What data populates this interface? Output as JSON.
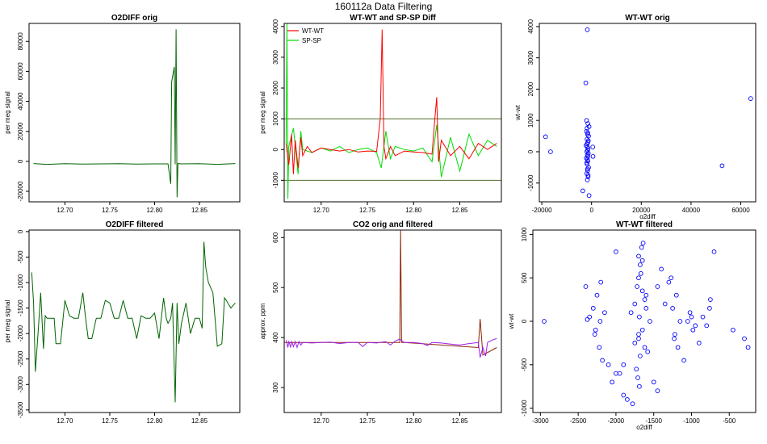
{
  "figure": {
    "title": "160112a   Data Filtering"
  },
  "colors": {
    "green": "#006400",
    "light_green": "#00dd00",
    "red": "#ff0000",
    "brown": "#8b2500",
    "purple": "#a020f0",
    "blue": "#0000ff",
    "olive": "#556b2f"
  },
  "chart_data": [
    {
      "id": "o2diff_orig",
      "type": "line",
      "title": "O2DIFF orig",
      "xlabel": "",
      "ylabel": "per meg signal",
      "xlim": [
        12.66,
        12.895
      ],
      "ylim": [
        -27000,
        92000
      ],
      "xticks": [
        12.7,
        12.75,
        12.8,
        12.85
      ],
      "xticklabels": [
        "12.70",
        "12.75",
        "12.80",
        "12.85"
      ],
      "yticks": [
        -20000,
        0,
        20000,
        40000,
        60000,
        80000
      ],
      "yticklabels": [
        "-20000",
        "0",
        "20000",
        "40000",
        "60000",
        "80000"
      ],
      "series": [
        {
          "name": "O2DIFF",
          "color": "#006400",
          "x": [
            12.665,
            12.68,
            12.7,
            12.72,
            12.74,
            12.76,
            12.78,
            12.8,
            12.815,
            12.818,
            12.819,
            12.822,
            12.823,
            12.824,
            12.825,
            12.826,
            12.83,
            12.85,
            12.87,
            12.89
          ],
          "y": [
            -1500,
            -2000,
            -1600,
            -1800,
            -1700,
            -1600,
            -1800,
            -1700,
            -1700,
            -15000,
            53000,
            63000,
            -2000,
            88000,
            -24000,
            -1500,
            -1700,
            -1600,
            -2000,
            -1500
          ]
        }
      ]
    },
    {
      "id": "wtwt_spsp_diff",
      "type": "line",
      "title": "WT-WT and SP-SP Diff",
      "xlabel": "",
      "ylabel": "per meg signal",
      "xlim": [
        12.66,
        12.895
      ],
      "ylim": [
        -1700,
        4100
      ],
      "xticks": [
        12.7,
        12.75,
        12.8,
        12.85
      ],
      "xticklabels": [
        "12.70",
        "12.75",
        "12.80",
        "12.85"
      ],
      "yticks": [
        -1000,
        0,
        1000,
        2000,
        3000,
        4000
      ],
      "yticklabels": [
        "-1000",
        "0",
        "1000",
        "2000",
        "3000",
        "4000"
      ],
      "hlines": [
        1000,
        -1000
      ],
      "legend": {
        "position": "top-left",
        "entries": [
          "WT-WT",
          "SP-SP"
        ]
      },
      "series": [
        {
          "name": "SP-SP",
          "color": "#00dd00",
          "x": [
            12.662,
            12.663,
            12.664,
            12.665,
            12.67,
            12.675,
            12.678,
            12.68,
            12.69,
            12.7,
            12.71,
            12.72,
            12.73,
            12.74,
            12.75,
            12.76,
            12.765,
            12.77,
            12.775,
            12.78,
            12.79,
            12.8,
            12.81,
            12.82,
            12.825,
            12.83,
            12.84,
            12.85,
            12.86,
            12.87,
            12.88,
            12.89
          ],
          "y": [
            200,
            4100,
            -1600,
            100,
            700,
            -800,
            600,
            0,
            -100,
            50,
            -50,
            100,
            -100,
            0,
            50,
            -100,
            -600,
            600,
            -300,
            100,
            0,
            -50,
            50,
            -400,
            800,
            -900,
            400,
            -700,
            500,
            -200,
            300,
            100
          ]
        },
        {
          "name": "WT-WT",
          "color": "#ff0000",
          "x": [
            12.662,
            12.665,
            12.668,
            12.67,
            12.672,
            12.675,
            12.678,
            12.68,
            12.685,
            12.69,
            12.7,
            12.71,
            12.72,
            12.73,
            12.74,
            12.75,
            12.76,
            12.764,
            12.766,
            12.768,
            12.77,
            12.775,
            12.78,
            12.79,
            12.8,
            12.81,
            12.82,
            12.823,
            12.825,
            12.827,
            12.83,
            12.84,
            12.85,
            12.86,
            12.87,
            12.88,
            12.89
          ],
          "y": [
            200,
            -500,
            500,
            -800,
            300,
            -600,
            400,
            -200,
            100,
            -100,
            50,
            0,
            -50,
            0,
            -80,
            -50,
            -60,
            1000,
            3900,
            100,
            -300,
            100,
            -200,
            -50,
            -80,
            -100,
            -150,
            1000,
            1700,
            -400,
            300,
            -200,
            100,
            -300,
            200,
            0,
            200
          ]
        }
      ]
    },
    {
      "id": "wtwt_orig",
      "type": "scatter",
      "title": "WT-WT orig",
      "xlabel": "o2diff",
      "ylabel": "wt-wt",
      "xlim": [
        -21000,
        66000
      ],
      "ylim": [
        -1600,
        4100
      ],
      "xticks": [
        -20000,
        0,
        20000,
        40000,
        60000
      ],
      "xticklabels": [
        "-20000",
        "0",
        "20000",
        "40000",
        "60000"
      ],
      "yticks": [
        -1000,
        0,
        1000,
        2000,
        3000,
        4000
      ],
      "yticklabels": [
        "-1000",
        "0",
        "1000",
        "2000",
        "3000",
        "4000"
      ],
      "series": [
        {
          "name": "points",
          "color": "#0000ff",
          "x": [
            -1700,
            -2300,
            64000,
            52500,
            -18500,
            -16500,
            -3500,
            -1000,
            -2000,
            -1000,
            -2000,
            -1200,
            -1800,
            -1500,
            -2200,
            -1400,
            -1600,
            -1900,
            -1300,
            -1700,
            -2100,
            -1500,
            -1800,
            -1200,
            -1600,
            -1900,
            -1400,
            -1700,
            -1500,
            -1800,
            -1600,
            -1300,
            -1700,
            -1500,
            -1900,
            -1600,
            -1400,
            -1800,
            -1700,
            -1500,
            500,
            600
          ],
          "y": [
            3900,
            2200,
            1700,
            -450,
            480,
            0,
            -1250,
            -1400,
            1000,
            800,
            650,
            500,
            400,
            300,
            200,
            100,
            50,
            0,
            -50,
            -100,
            -200,
            -300,
            -400,
            -500,
            -600,
            -700,
            -800,
            -900,
            900,
            750,
            550,
            350,
            150,
            -150,
            -350,
            -550,
            -750,
            250,
            -250,
            600,
            150,
            -150
          ]
        }
      ]
    },
    {
      "id": "o2diff_filtered",
      "type": "line",
      "title": "O2DIFF filtered",
      "xlabel": "",
      "ylabel": "per meg signal",
      "xlim": [
        12.66,
        12.895
      ],
      "ylim": [
        -3550,
        30
      ],
      "xticks": [
        12.7,
        12.75,
        12.8,
        12.85
      ],
      "xticklabels": [
        "12.70",
        "12.75",
        "12.80",
        "12.85"
      ],
      "yticks": [
        -3500,
        -3000,
        -2500,
        -2000,
        -1500,
        -1000,
        -500,
        0
      ],
      "yticklabels": [
        "-3500",
        "-3000",
        "-2500",
        "-2000",
        "-1500",
        "-1000",
        "-500",
        "0"
      ],
      "series": [
        {
          "name": "O2DIFF filtered",
          "color": "#006400",
          "x": [
            12.663,
            12.665,
            12.667,
            12.67,
            12.673,
            12.676,
            12.678,
            12.68,
            12.685,
            12.688,
            12.69,
            12.695,
            12.7,
            12.705,
            12.71,
            12.715,
            12.72,
            12.723,
            12.726,
            12.73,
            12.735,
            12.74,
            12.745,
            12.75,
            12.755,
            12.76,
            12.765,
            12.77,
            12.775,
            12.78,
            12.785,
            12.79,
            12.795,
            12.8,
            12.805,
            12.81,
            12.813,
            12.815,
            12.818,
            12.82,
            12.823,
            12.825,
            12.827,
            12.83,
            12.835,
            12.84,
            12.845,
            12.85,
            12.853,
            12.855,
            12.857,
            12.86,
            12.865,
            12.87,
            12.875,
            12.878,
            12.88,
            12.885,
            12.89
          ],
          "y": [
            -800,
            -1400,
            -2750,
            -2000,
            -1200,
            -2300,
            -1650,
            -1700,
            -1700,
            -1700,
            -2200,
            -2200,
            -1350,
            -1650,
            -1700,
            -1700,
            -1200,
            -1700,
            -2100,
            -2100,
            -1700,
            -1700,
            -1350,
            -1400,
            -1700,
            -1700,
            -1350,
            -1700,
            -1700,
            -2100,
            -1650,
            -1700,
            -1700,
            -1600,
            -2100,
            -1300,
            -1700,
            -1800,
            -1700,
            -1400,
            -3350,
            -1400,
            -2200,
            -1800,
            -1400,
            -2000,
            -1700,
            -1700,
            -1900,
            -200,
            -700,
            -1000,
            -1200,
            -2250,
            -2200,
            -1300,
            -1350,
            -1500,
            -1400
          ]
        }
      ]
    },
    {
      "id": "co2_orig_filtered",
      "type": "line",
      "title": "CO2 orig and filtered",
      "xlabel": "",
      "ylabel": "approx. ppm",
      "xlim": [
        12.66,
        12.895
      ],
      "ylim": [
        250,
        615
      ],
      "xticks": [
        12.7,
        12.75,
        12.8,
        12.85
      ],
      "xticklabels": [
        "12.70",
        "12.75",
        "12.80",
        "12.85"
      ],
      "yticks": [
        300,
        400,
        500,
        600
      ],
      "yticklabels": [
        "300",
        "400",
        "500",
        "600"
      ],
      "series": [
        {
          "name": "CO2 orig",
          "color": "#8b2500",
          "x": [
            12.66,
            12.785,
            12.786,
            12.787,
            12.79,
            12.87,
            12.872,
            12.875,
            12.89
          ],
          "y": [
            390,
            390,
            615,
            390,
            390,
            380,
            437,
            365,
            380
          ]
        },
        {
          "name": "CO2 filtered",
          "color": "#a020f0",
          "x": [
            12.662,
            12.664,
            12.665,
            12.667,
            12.668,
            12.67,
            12.672,
            12.674,
            12.676,
            12.678,
            12.68,
            12.69,
            12.7,
            12.71,
            12.72,
            12.73,
            12.74,
            12.745,
            12.75,
            12.76,
            12.77,
            12.775,
            12.78,
            12.785,
            12.79,
            12.8,
            12.81,
            12.815,
            12.82,
            12.83,
            12.84,
            12.85,
            12.86,
            12.87,
            12.872,
            12.875,
            12.878,
            12.88,
            12.885,
            12.89
          ],
          "y": [
            395,
            380,
            393,
            380,
            393,
            382,
            392,
            380,
            392,
            385,
            390,
            389,
            390,
            391,
            388,
            390,
            390,
            382,
            390,
            389,
            392,
            385,
            393,
            397,
            390,
            390,
            388,
            384,
            390,
            389,
            387,
            385,
            388,
            390,
            360,
            380,
            363,
            390,
            395,
            398
          ]
        }
      ]
    },
    {
      "id": "wtwt_filtered",
      "type": "scatter",
      "title": "WT-WT filtered",
      "xlabel": "o2diff",
      "ylabel": "wt-wt",
      "xlim": [
        -3100,
        -150
      ],
      "ylim": [
        -1050,
        1050
      ],
      "xticks": [
        -3000,
        -2500,
        -2000,
        -1500,
        -1000,
        -500
      ],
      "xticklabels": [
        "-3000",
        "-2500",
        "-2000",
        "-1500",
        "-1000",
        "-500"
      ],
      "yticks": [
        -1000,
        -500,
        0,
        500,
        1000
      ],
      "yticklabels": [
        "-1000",
        "-500",
        "0",
        "500",
        "1000"
      ],
      "series": [
        {
          "name": "points",
          "color": "#0000ff",
          "x": [
            -2950,
            -2380,
            -2300,
            -2280,
            -2250,
            -2220,
            -2200,
            -2180,
            -2350,
            -2150,
            -2270,
            -2210,
            -1680,
            -1650,
            -1700,
            -1720,
            -1600,
            -1750,
            -1800,
            -1550,
            -1650,
            -1700,
            -1620,
            -1680,
            -1900,
            -1950,
            -1500,
            -1450,
            -1850,
            -1780,
            -1660,
            -1640,
            -1700,
            -1690,
            -1710,
            -1670,
            -1730,
            -1650,
            -1580,
            -1620,
            -1750,
            -1600,
            -1700,
            -1690,
            -1200,
            -1250,
            -1150,
            -1220,
            -1180,
            -1300,
            -1100,
            -1270,
            -1230,
            -1000,
            -1050,
            -950,
            -1020,
            -980,
            -2000,
            -2100,
            -1400,
            -850,
            -800,
            -750,
            -900,
            -700,
            -760,
            -2050,
            -450,
            -300,
            -250,
            -1900,
            -1450,
            -1350,
            -2400,
            -2000
          ],
          "y": [
            0,
            20,
            150,
            -150,
            300,
            -300,
            450,
            -450,
            50,
            100,
            -100,
            0,
            650,
            700,
            500,
            400,
            300,
            200,
            100,
            0,
            -100,
            -200,
            -300,
            -400,
            -500,
            -600,
            -700,
            -800,
            -900,
            -950,
            850,
            900,
            750,
            -750,
            -650,
            550,
            -550,
            350,
            -350,
            250,
            -250,
            150,
            -150,
            50,
            300,
            150,
            0,
            -150,
            -300,
            450,
            -450,
            500,
            -200,
            50,
            0,
            -50,
            100,
            -100,
            800,
            -500,
            600,
            50,
            -50,
            250,
            -250,
            800,
            150,
            -700,
            -100,
            -200,
            -300,
            -850,
            400,
            200,
            400,
            -600
          ]
        }
      ]
    }
  ]
}
